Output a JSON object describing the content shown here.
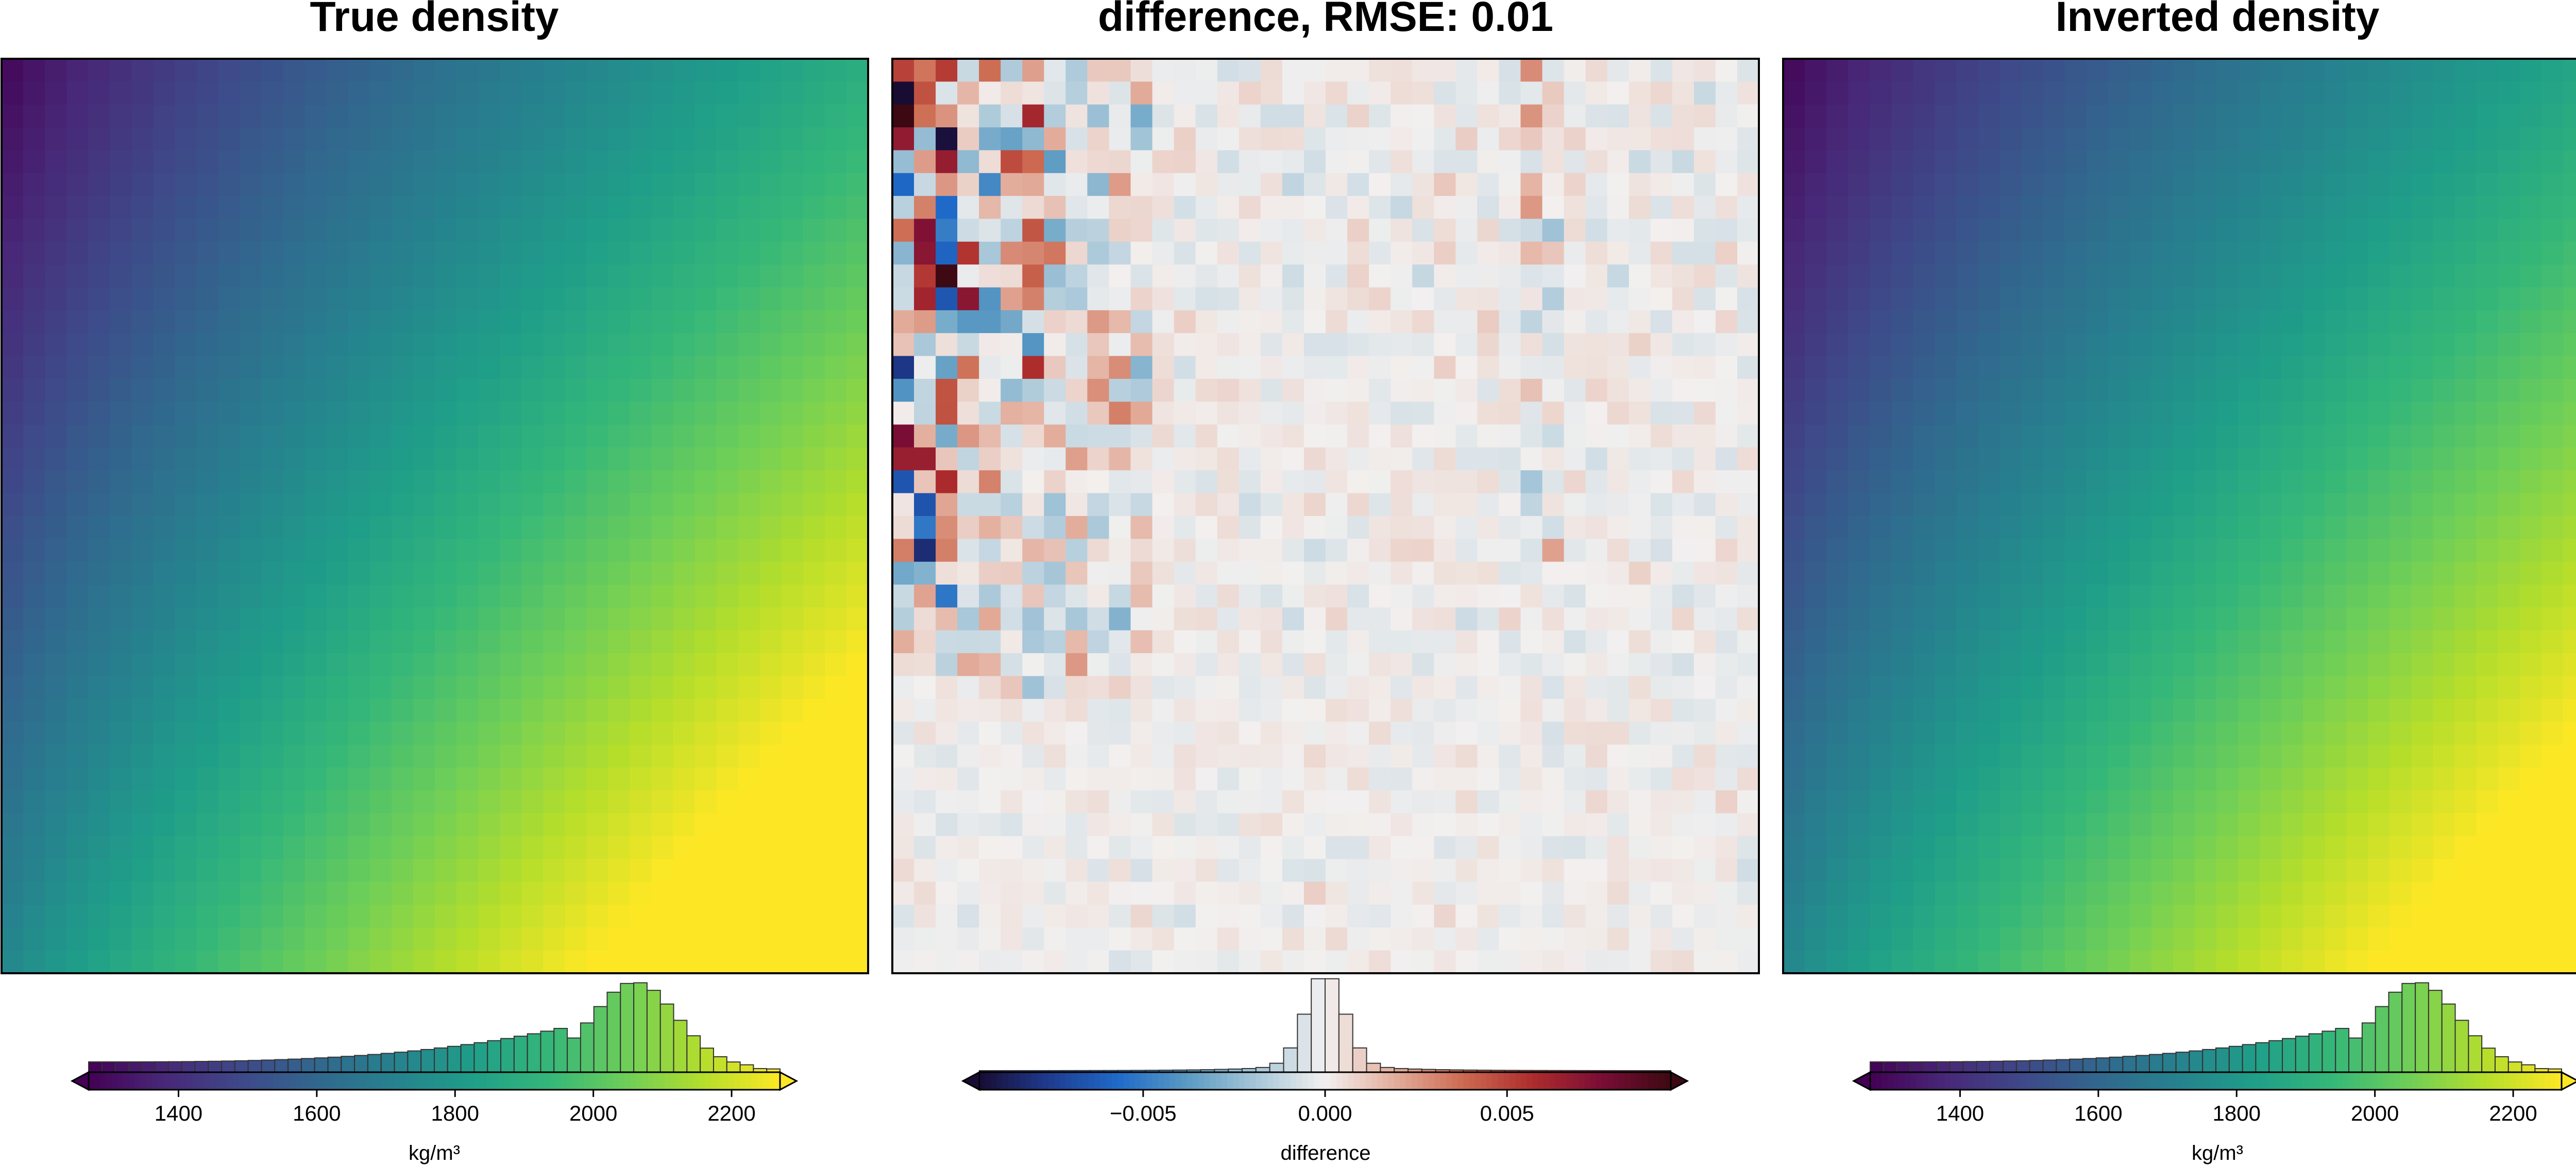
{
  "chart_data": [
    {
      "type": "heatmap",
      "title": "True density",
      "colormap": "viridis",
      "cmap_range": [
        1270,
        2270
      ],
      "value_model": {
        "min": 1280,
        "max": 2270,
        "note": "increases toward lower-right"
      },
      "colorbar": {
        "label": "kg/m³",
        "ticks": [
          1400,
          1600,
          1800,
          2000,
          2200
        ],
        "extend": "both",
        "histogram": true
      }
    },
    {
      "type": "heatmap",
      "title": "difference, RMSE: 0.01",
      "colormap": "balance",
      "cmap_range": [
        -0.0095,
        0.0095
      ],
      "rmse": 0.01,
      "colorbar": {
        "label": "difference",
        "ticks": [
          -0.005,
          0.0,
          0.005
        ],
        "tick_labels": [
          "−0.005",
          "0.000",
          "0.005"
        ],
        "extend": "both",
        "histogram": true
      }
    },
    {
      "type": "heatmap",
      "title": "Inverted density",
      "colormap": "viridis",
      "cmap_range": [
        1270,
        2270
      ],
      "value_model": {
        "min": 1280,
        "max": 2270,
        "note": "increases toward lower-right"
      },
      "colorbar": {
        "label": "kg/m³",
        "ticks": [
          1400,
          1600,
          1800,
          2000,
          2200
        ],
        "extend": "both",
        "histogram": true
      }
    }
  ],
  "colors": {
    "viridis": [
      "#440154",
      "#482878",
      "#3e4989",
      "#31688e",
      "#26828e",
      "#1f9e89",
      "#35b779",
      "#6ece58",
      "#b5de2b",
      "#fde725"
    ],
    "balance": [
      "#180c33",
      "#1e3b8f",
      "#1f6ac8",
      "#5a9ac2",
      "#a6c6d8",
      "#f2f0ef",
      "#e3ad9c",
      "#cc6a50",
      "#ad2c2c",
      "#7a0d35",
      "#3c0912"
    ]
  }
}
